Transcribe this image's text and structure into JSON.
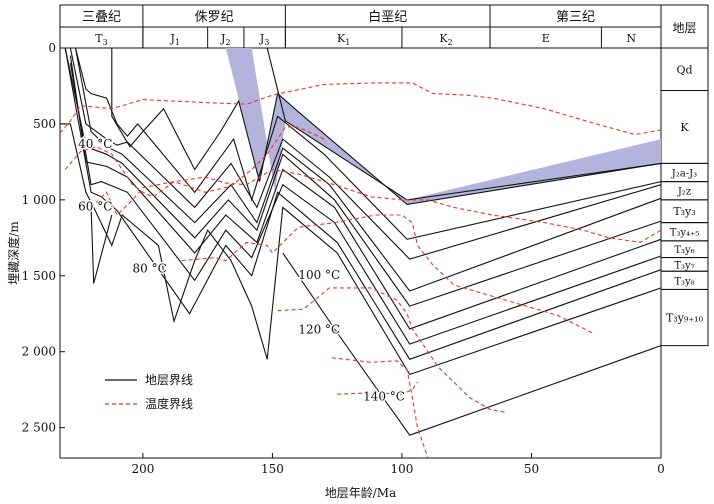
{
  "chart_data": {
    "type": "line",
    "title": "",
    "xlabel": "地层年龄/Ma",
    "ylabel": "埋藏深度/m",
    "xlim": [
      232,
      0
    ],
    "ylim": [
      0,
      2700
    ],
    "x_ticks": [
      {
        "value": 200,
        "label": "200"
      },
      {
        "value": 150,
        "label": "150"
      },
      {
        "value": 100,
        "label": "100"
      },
      {
        "value": 50,
        "label": "50"
      },
      {
        "value": 0,
        "label": "0"
      }
    ],
    "y_ticks": [
      {
        "value": 0,
        "label": "0"
      },
      {
        "value": 500,
        "label": "500"
      },
      {
        "value": 1000,
        "label": "1 000"
      },
      {
        "value": 1500,
        "label": "1 500"
      },
      {
        "value": 2000,
        "label": "2 000"
      },
      {
        "value": 2500,
        "label": "2 500"
      }
    ],
    "periods": [
      {
        "label": "三叠纪",
        "start": 232,
        "end": 200
      },
      {
        "label": "侏罗纪",
        "start": 200,
        "end": 145
      },
      {
        "label": "白垩纪",
        "start": 145,
        "end": 66
      },
      {
        "label": "第三纪",
        "start": 66,
        "end": 0
      }
    ],
    "epochs": [
      {
        "label": "T",
        "sub": "3",
        "start": 232,
        "end": 200
      },
      {
        "label": "J",
        "sub": "1",
        "start": 200,
        "end": 175
      },
      {
        "label": "J",
        "sub": "2",
        "start": 175,
        "end": 161
      },
      {
        "label": "J",
        "sub": "3",
        "start": 161,
        "end": 145
      },
      {
        "label": "K",
        "sub": "1",
        "start": 145,
        "end": 100
      },
      {
        "label": "K",
        "sub": "2",
        "start": 100,
        "end": 66
      },
      {
        "label": "E",
        "sub": "",
        "start": 66,
        "end": 23
      },
      {
        "label": "N",
        "sub": "",
        "start": 23,
        "end": 0
      }
    ],
    "strata_header": "地层",
    "strata": [
      {
        "label": "Qd",
        "top": 0,
        "bottom": 280
      },
      {
        "label": "K",
        "top": 280,
        "bottom": 760
      },
      {
        "label": "J₂a-J₃",
        "top": 760,
        "bottom": 880
      },
      {
        "label": "J₂z",
        "top": 880,
        "bottom": 1000
      },
      {
        "label": "T₃y₃",
        "top": 1000,
        "bottom": 1150
      },
      {
        "label": "T₃y₄₊₅",
        "top": 1150,
        "bottom": 1270
      },
      {
        "label": "T₃y₆",
        "top": 1270,
        "bottom": 1380
      },
      {
        "label": "T₃y₇",
        "top": 1380,
        "bottom": 1470
      },
      {
        "label": "T₃y₈",
        "top": 1470,
        "bottom": 1590
      },
      {
        "label": "T₃y₉₊₁₀",
        "top": 1590,
        "bottom": 1960
      }
    ],
    "stratum_lines": [
      [
        [
          152,
          0
        ],
        [
          145,
          480
        ],
        [
          98,
          1000
        ],
        [
          0,
          760
        ]
      ],
      [
        [
          228,
          0
        ],
        [
          212,
          0
        ],
        [
          212,
          450
        ],
        [
          205,
          650
        ],
        [
          200,
          550
        ],
        [
          192,
          400
        ],
        [
          180,
          800
        ],
        [
          170,
          550
        ],
        [
          163,
          350
        ],
        [
          155,
          880
        ],
        [
          148,
          300
        ],
        [
          140,
          420
        ],
        [
          98,
          1030
        ],
        [
          0,
          760
        ]
      ],
      [
        [
          226,
          0
        ],
        [
          222,
          270
        ],
        [
          220,
          300
        ],
        [
          214,
          330
        ],
        [
          210,
          500
        ],
        [
          206,
          580
        ],
        [
          202,
          500
        ],
        [
          180,
          950
        ],
        [
          165,
          600
        ],
        [
          158,
          1000
        ],
        [
          148,
          450
        ],
        [
          130,
          700
        ],
        [
          98,
          1260
        ],
        [
          0,
          880
        ]
      ],
      [
        [
          228,
          0
        ],
        [
          222,
          500
        ],
        [
          214,
          600
        ],
        [
          210,
          640
        ],
        [
          206,
          620
        ],
        [
          180,
          1050
        ],
        [
          166,
          760
        ],
        [
          156,
          1050
        ],
        [
          146,
          600
        ],
        [
          128,
          850
        ],
        [
          97,
          1390
        ],
        [
          0,
          900
        ]
      ],
      [
        [
          226,
          0
        ],
        [
          220,
          550
        ],
        [
          214,
          650
        ],
        [
          208,
          700
        ],
        [
          180,
          1150
        ],
        [
          166,
          900
        ],
        [
          156,
          1150
        ],
        [
          146,
          660
        ],
        [
          128,
          900
        ],
        [
          97,
          1600
        ],
        [
          0,
          990
        ]
      ],
      [
        [
          230,
          0
        ],
        [
          222,
          650
        ],
        [
          214,
          700
        ],
        [
          208,
          760
        ],
        [
          180,
          1250
        ],
        [
          167,
          1000
        ],
        [
          156,
          1200
        ],
        [
          146,
          700
        ],
        [
          126,
          1000
        ],
        [
          97,
          1700
        ],
        [
          0,
          1140
        ]
      ],
      [
        [
          228,
          50
        ],
        [
          222,
          750
        ],
        [
          214,
          780
        ],
        [
          206,
          850
        ],
        [
          180,
          1350
        ],
        [
          168,
          1100
        ],
        [
          156,
          1280
        ],
        [
          146,
          800
        ],
        [
          126,
          1050
        ],
        [
          97,
          1850
        ],
        [
          0,
          1260
        ]
      ],
      [
        [
          228,
          100
        ],
        [
          220,
          900
        ],
        [
          216,
          880
        ],
        [
          206,
          950
        ],
        [
          180,
          1530
        ],
        [
          168,
          1200
        ],
        [
          158,
          1380
        ],
        [
          146,
          900
        ],
        [
          126,
          1150
        ],
        [
          97,
          1950
        ],
        [
          0,
          1370
        ]
      ],
      [
        [
          230,
          0
        ],
        [
          220,
          950
        ],
        [
          216,
          980
        ],
        [
          210,
          1070
        ],
        [
          182,
          1750
        ],
        [
          168,
          1300
        ],
        [
          158,
          1500
        ],
        [
          148,
          950
        ],
        [
          125,
          1280
        ],
        [
          97,
          2050
        ],
        [
          0,
          1460
        ]
      ],
      [
        [
          232,
          500
        ],
        [
          228,
          500
        ],
        [
          222,
          950
        ],
        [
          219,
          1050
        ],
        [
          212,
          1300
        ],
        [
          208,
          1100
        ],
        [
          194,
          1300
        ],
        [
          188,
          1800
        ],
        [
          180,
          1400
        ],
        [
          175,
          1200
        ],
        [
          166,
          1400
        ],
        [
          158,
          1700
        ],
        [
          152,
          2050
        ],
        [
          146,
          1050
        ],
        [
          125,
          1350
        ],
        [
          97,
          2150
        ],
        [
          0,
          1580
        ]
      ],
      [
        [
          220,
          1050
        ],
        [
          219,
          1550
        ],
        [
          212,
          1100
        ]
      ],
      [
        [
          146,
          1350
        ],
        [
          124,
          1900
        ],
        [
          97,
          2550
        ],
        [
          0,
          1960
        ]
      ]
    ],
    "highlight_band": {
      "upper": [
        [
          168,
          0
        ],
        [
          158,
          0
        ],
        [
          149,
          950
        ],
        [
          145,
          480
        ],
        [
          98,
          1000
        ],
        [
          0,
          600
        ]
      ],
      "lower": [
        [
          0,
          760
        ],
        [
          98,
          1030
        ],
        [
          140,
          420
        ],
        [
          148,
          300
        ],
        [
          155,
          880
        ]
      ]
    },
    "temperature_lines": [
      [
        [
          232,
          560
        ],
        [
          228,
          480
        ],
        [
          224,
          380
        ],
        [
          212,
          400
        ],
        [
          200,
          340
        ],
        [
          175,
          360
        ],
        [
          160,
          370
        ],
        [
          150,
          310
        ],
        [
          130,
          240
        ],
        [
          110,
          230
        ],
        [
          96,
          230
        ],
        [
          88,
          300
        ],
        [
          75,
          310
        ],
        [
          65,
          330
        ],
        [
          45,
          400
        ],
        [
          25,
          500
        ],
        [
          10,
          570
        ],
        [
          0,
          540
        ]
      ],
      [
        [
          230,
          800
        ],
        [
          224,
          680
        ],
        [
          218,
          650
        ],
        [
          212,
          700
        ],
        [
          208,
          800
        ],
        [
          204,
          900
        ],
        [
          200,
          950
        ],
        [
          196,
          980
        ],
        [
          188,
          880
        ],
        [
          176,
          850
        ],
        [
          168,
          890
        ],
        [
          160,
          900
        ],
        [
          150,
          800
        ],
        [
          140,
          830
        ],
        [
          126,
          900
        ],
        [
          112,
          980
        ],
        [
          100,
          1000
        ],
        [
          90,
          1000
        ],
        [
          80,
          1050
        ],
        [
          65,
          1100
        ],
        [
          45,
          1150
        ],
        [
          30,
          1200
        ],
        [
          20,
          1250
        ],
        [
          8,
          1280
        ],
        [
          0,
          1200
        ]
      ],
      [
        [
          220,
          1050
        ],
        [
          214,
          950
        ],
        [
          210,
          1100
        ],
        [
          204,
          1000
        ],
        [
          200,
          920
        ],
        [
          188,
          880
        ],
        [
          176,
          950
        ],
        [
          166,
          910
        ],
        [
          158,
          800
        ],
        [
          152,
          700
        ],
        [
          148,
          600
        ],
        [
          145,
          520
        ],
        [
          140,
          520
        ],
        [
          130,
          600
        ]
      ],
      [
        [
          185,
          1400
        ],
        [
          172,
          1380
        ],
        [
          168,
          1400
        ],
        [
          160,
          1280
        ],
        [
          152,
          1300
        ],
        [
          150,
          1350
        ],
        [
          140,
          1180
        ],
        [
          126,
          1150
        ],
        [
          110,
          1100
        ],
        [
          100,
          1100
        ],
        [
          96,
          1150
        ],
        [
          94,
          1300
        ],
        [
          88,
          1430
        ],
        [
          80,
          1560
        ],
        [
          60,
          1660
        ],
        [
          40,
          1760
        ],
        [
          26,
          1880
        ]
      ],
      [
        [
          148,
          1730
        ],
        [
          138,
          1720
        ],
        [
          128,
          1580
        ],
        [
          112,
          1580
        ],
        [
          102,
          1660
        ],
        [
          98,
          1750
        ],
        [
          96,
          1850
        ],
        [
          90,
          2000
        ],
        [
          86,
          2100
        ],
        [
          80,
          2200
        ],
        [
          74,
          2300
        ],
        [
          66,
          2380
        ],
        [
          60,
          2400
        ]
      ],
      [
        [
          127,
          2040
        ],
        [
          112,
          2070
        ],
        [
          102,
          2060
        ],
        [
          98,
          2120
        ],
        [
          96,
          2300
        ],
        [
          94,
          2500
        ],
        [
          92,
          2600
        ],
        [
          90,
          2700
        ]
      ],
      [
        [
          125,
          2280
        ],
        [
          110,
          2270
        ],
        [
          100,
          2280
        ],
        [
          96,
          2250
        ],
        [
          94,
          2200
        ]
      ]
    ],
    "temperature_labels": [
      {
        "label": "40 °C",
        "x": 225,
        "y": 660
      },
      {
        "label": "60 °C",
        "x": 225,
        "y": 1070
      },
      {
        "label": "80 °C",
        "x": 204,
        "y": 1480
      },
      {
        "label": "100 °C",
        "x": 140,
        "y": 1520
      },
      {
        "label": "120 °C",
        "x": 140,
        "y": 1880
      },
      {
        "label": "140 °C",
        "x": 115,
        "y": 2320
      }
    ],
    "legend": [
      {
        "label": "地层界线",
        "style": "solid"
      },
      {
        "label": "温度界线",
        "style": "dashed"
      }
    ],
    "colors": {
      "stratum_line": "#111111",
      "temperature_line": "#e8352a",
      "highlight_fill": "#b3b3dc",
      "axis": "#111111"
    }
  }
}
